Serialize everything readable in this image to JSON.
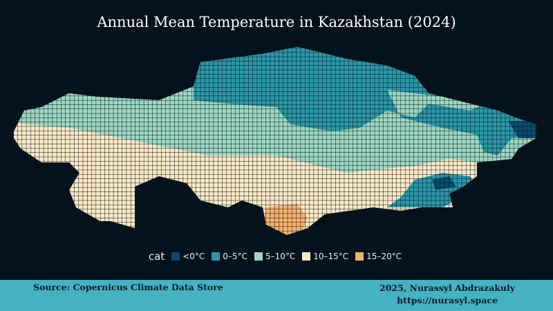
{
  "title": "Annual Mean Temperature in Kazakhstan (2024)",
  "legend": {
    "title": "cat",
    "items": [
      {
        "label": "<0°C",
        "color": "#0b4a6e"
      },
      {
        "label": "0–5°C",
        "color": "#2a97a6"
      },
      {
        "label": "5–10°C",
        "color": "#9dd7c2"
      },
      {
        "label": "10–15°C",
        "color": "#fbe9c6"
      },
      {
        "label": "15–20°C",
        "color": "#f6b06d"
      }
    ]
  },
  "footer": {
    "source": "Source: Copernicus Climate Data Store",
    "credit": "2025, Nurassyl Abdrazakuly",
    "url": "https://nurasyl.space"
  }
}
